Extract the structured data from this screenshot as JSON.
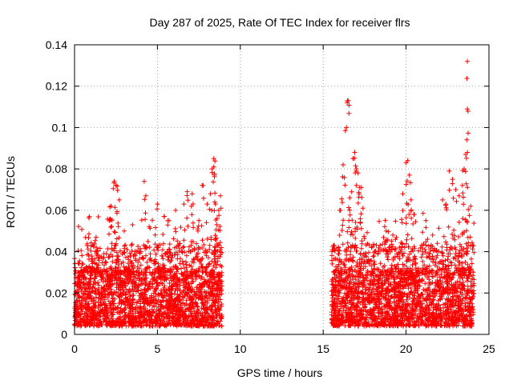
{
  "chart_data": {
    "type": "scatter",
    "title": "Day 287 of 2025, Rate Of TEC Index for receiver flrs",
    "xlabel": "GPS time / hours",
    "ylabel": "ROTI / TECUs",
    "xlim": [
      0,
      25
    ],
    "ylim": [
      0,
      0.14
    ],
    "xticks": [
      0,
      5,
      10,
      15,
      20,
      25
    ],
    "xtick_labels": [
      "0",
      "5",
      "10",
      "15",
      "20",
      "25"
    ],
    "yticks": [
      0,
      0.02,
      0.04,
      0.06,
      0.08,
      0.1,
      0.12,
      0.14
    ],
    "ytick_labels": [
      "0",
      "0.02",
      "0.04",
      "0.06",
      "0.08",
      "0.1",
      "0.12",
      "0.14"
    ],
    "grid": true,
    "marker": "+",
    "color": "#ff0000",
    "series": [
      {
        "name": "ROTI",
        "segments": [
          {
            "x_start": 0.0,
            "x_end": 8.9,
            "baseline_min": 0.004,
            "baseline_max": 0.03
          },
          {
            "x_start": 15.5,
            "x_end": 24.1,
            "baseline_min": 0.004,
            "baseline_max": 0.03
          }
        ],
        "peak_points": [
          {
            "x": 0.9,
            "y": 0.057
          },
          {
            "x": 1.3,
            "y": 0.047
          },
          {
            "x": 2.1,
            "y": 0.055
          },
          {
            "x": 2.2,
            "y": 0.062
          },
          {
            "x": 2.4,
            "y": 0.074
          },
          {
            "x": 2.5,
            "y": 0.072
          },
          {
            "x": 2.7,
            "y": 0.065
          },
          {
            "x": 3.0,
            "y": 0.05
          },
          {
            "x": 3.5,
            "y": 0.053
          },
          {
            "x": 4.2,
            "y": 0.074
          },
          {
            "x": 4.3,
            "y": 0.067
          },
          {
            "x": 4.5,
            "y": 0.052
          },
          {
            "x": 5.0,
            "y": 0.063
          },
          {
            "x": 5.4,
            "y": 0.057
          },
          {
            "x": 5.7,
            "y": 0.055
          },
          {
            "x": 6.1,
            "y": 0.06
          },
          {
            "x": 6.6,
            "y": 0.063
          },
          {
            "x": 6.8,
            "y": 0.069
          },
          {
            "x": 7.1,
            "y": 0.068
          },
          {
            "x": 7.5,
            "y": 0.055
          },
          {
            "x": 7.7,
            "y": 0.072
          },
          {
            "x": 8.0,
            "y": 0.063
          },
          {
            "x": 8.2,
            "y": 0.068
          },
          {
            "x": 8.5,
            "y": 0.063
          },
          {
            "x": 8.8,
            "y": 0.067
          },
          {
            "x": 8.6,
            "y": 0.056
          },
          {
            "x": 8.7,
            "y": 0.06
          },
          {
            "x": 8.3,
            "y": 0.08
          },
          {
            "x": 8.4,
            "y": 0.081
          },
          {
            "x": 8.4,
            "y": 0.085
          },
          {
            "x": 16.0,
            "y": 0.06
          },
          {
            "x": 16.2,
            "y": 0.082
          },
          {
            "x": 16.4,
            "y": 0.1
          },
          {
            "x": 16.5,
            "y": 0.113
          },
          {
            "x": 16.6,
            "y": 0.066
          },
          {
            "x": 16.8,
            "y": 0.085
          },
          {
            "x": 16.9,
            "y": 0.088
          },
          {
            "x": 17.0,
            "y": 0.08
          },
          {
            "x": 17.1,
            "y": 0.078
          },
          {
            "x": 17.2,
            "y": 0.071
          },
          {
            "x": 17.3,
            "y": 0.071
          },
          {
            "x": 17.4,
            "y": 0.061
          },
          {
            "x": 18.8,
            "y": 0.05
          },
          {
            "x": 19.2,
            "y": 0.048
          },
          {
            "x": 19.8,
            "y": 0.068
          },
          {
            "x": 20.0,
            "y": 0.083
          },
          {
            "x": 20.1,
            "y": 0.084
          },
          {
            "x": 20.2,
            "y": 0.077
          },
          {
            "x": 20.3,
            "y": 0.065
          },
          {
            "x": 20.5,
            "y": 0.058
          },
          {
            "x": 21.2,
            "y": 0.055
          },
          {
            "x": 21.6,
            "y": 0.048
          },
          {
            "x": 22.2,
            "y": 0.065
          },
          {
            "x": 22.4,
            "y": 0.063
          },
          {
            "x": 22.6,
            "y": 0.079
          },
          {
            "x": 22.8,
            "y": 0.075
          },
          {
            "x": 23.0,
            "y": 0.07
          },
          {
            "x": 23.2,
            "y": 0.067
          },
          {
            "x": 23.4,
            "y": 0.072
          },
          {
            "x": 23.5,
            "y": 0.08
          },
          {
            "x": 23.6,
            "y": 0.087
          },
          {
            "x": 23.7,
            "y": 0.088
          },
          {
            "x": 23.7,
            "y": 0.109
          },
          {
            "x": 23.7,
            "y": 0.132
          },
          {
            "x": 23.9,
            "y": 0.062
          }
        ]
      }
    ]
  }
}
